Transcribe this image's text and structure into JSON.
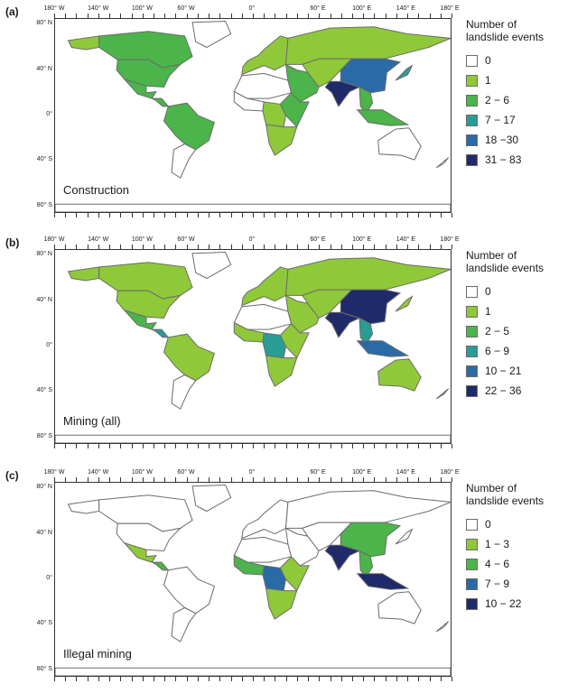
{
  "palette": {
    "white": "#ffffff",
    "light_green": "#8fc93a",
    "green": "#4bb44a",
    "teal": "#2a9c96",
    "blue": "#2a6aa6",
    "navy": "#1f2a6a",
    "border": "#6b6b6b",
    "ocean": "#ffffff"
  },
  "axes": {
    "longitudes": [
      "180° W",
      "140° W",
      "100° W",
      "60° W",
      "0°",
      "60° E",
      "100° E",
      "140° E",
      "180° E"
    ],
    "latitudes": [
      "80° N",
      "40° N",
      "0°",
      "40° S",
      "80° S"
    ]
  },
  "legend_title_line1": "Number of",
  "legend_title_line2": "landslide events",
  "panels": [
    {
      "id": "a",
      "letter": "(a)",
      "caption": "Construction",
      "legend": [
        {
          "label": "0",
          "color": "#ffffff"
        },
        {
          "label": "1",
          "color": "#8fc93a"
        },
        {
          "label": "2 − 6",
          "color": "#4bb44a"
        },
        {
          "label": "7 − 17",
          "color": "#2a9c96"
        },
        {
          "label": "18 −30",
          "color": "#2a6aa6"
        },
        {
          "label": "31 − 83",
          "color": "#1f2a6a"
        }
      ],
      "regions": {
        "canada": "#4bb44a",
        "usa": "#4bb44a",
        "mexico": "#4bb44a",
        "central_america": "#4bb44a",
        "greenland": "#ffffff",
        "alaska": "#8fc93a",
        "south_america": "#4bb44a",
        "south_america_south": "#ffffff",
        "europe": "#8fc93a",
        "russia": "#8fc93a",
        "north_africa": "#ffffff",
        "west_africa": "#ffffff",
        "central_africa": "#8fc93a",
        "east_africa": "#4bb44a",
        "southern_africa": "#8fc93a",
        "middle_east": "#4bb44a",
        "central_asia": "#8fc93a",
        "china": "#2a6aa6",
        "india": "#1f2a6a",
        "southeast_asia": "#4bb44a",
        "indonesia": "#4bb44a",
        "japan": "#2a9c96",
        "australia": "#ffffff",
        "new_zealand": "#ffffff",
        "antarctica": "#ffffff"
      }
    },
    {
      "id": "b",
      "letter": "(b)",
      "caption": "Mining (all)",
      "legend": [
        {
          "label": "0",
          "color": "#ffffff"
        },
        {
          "label": "1",
          "color": "#8fc93a"
        },
        {
          "label": "2 − 5",
          "color": "#4bb44a"
        },
        {
          "label": "6 − 9",
          "color": "#2a9c96"
        },
        {
          "label": "10 − 21",
          "color": "#2a6aa6"
        },
        {
          "label": "22 − 36",
          "color": "#1f2a6a"
        }
      ],
      "regions": {
        "canada": "#8fc93a",
        "usa": "#8fc93a",
        "mexico": "#4bb44a",
        "central_america": "#2a9c96",
        "greenland": "#ffffff",
        "alaska": "#8fc93a",
        "south_america": "#8fc93a",
        "south_america_south": "#ffffff",
        "europe": "#8fc93a",
        "russia": "#8fc93a",
        "north_africa": "#ffffff",
        "west_africa": "#8fc93a",
        "central_africa": "#2a9c96",
        "east_africa": "#8fc93a",
        "southern_africa": "#8fc93a",
        "middle_east": "#8fc93a",
        "central_asia": "#8fc93a",
        "china": "#1f2a6a",
        "india": "#1f2a6a",
        "southeast_asia": "#2a9c96",
        "indonesia": "#2a6aa6",
        "japan": "#8fc93a",
        "australia": "#8fc93a",
        "new_zealand": "#8fc93a",
        "antarctica": "#ffffff"
      }
    },
    {
      "id": "c",
      "letter": "(c)",
      "caption": "Illegal mining",
      "legend": [
        {
          "label": "0",
          "color": "#ffffff"
        },
        {
          "label": "1 − 3",
          "color": "#8fc93a"
        },
        {
          "label": "4 − 6",
          "color": "#4bb44a"
        },
        {
          "label": "7 − 9",
          "color": "#2a6aa6"
        },
        {
          "label": "10 − 22",
          "color": "#1f2a6a"
        }
      ],
      "regions": {
        "canada": "#ffffff",
        "usa": "#ffffff",
        "mexico": "#8fc93a",
        "central_america": "#4bb44a",
        "greenland": "#ffffff",
        "alaska": "#ffffff",
        "south_america": "#ffffff",
        "south_america_south": "#ffffff",
        "europe": "#ffffff",
        "russia": "#ffffff",
        "north_africa": "#ffffff",
        "west_africa": "#4bb44a",
        "central_africa": "#2a6aa6",
        "east_africa": "#8fc93a",
        "southern_africa": "#8fc93a",
        "middle_east": "#ffffff",
        "central_asia": "#ffffff",
        "china": "#4bb44a",
        "india": "#1f2a6a",
        "southeast_asia": "#4bb44a",
        "indonesia": "#1f2a6a",
        "japan": "#ffffff",
        "australia": "#ffffff",
        "new_zealand": "#ffffff",
        "antarctica": "#ffffff"
      }
    }
  ]
}
